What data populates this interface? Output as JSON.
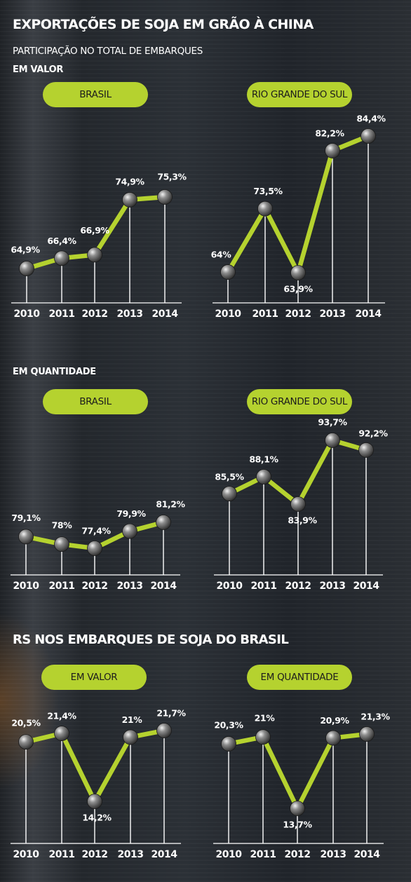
{
  "header": {
    "title": "EXPORTAÇÕES DE SOJA EM GRÃO À CHINA",
    "subtitle": "PARTICIPAÇÃO NO TOTAL DE EMBARQUES",
    "section_value": "EM VALOR",
    "section_quantity": "EM QUANTIDADE",
    "section_rs": "RS NOS EMBARQUES DE SOJA DO BRASIL"
  },
  "colors": {
    "line": "#b5d22f",
    "pill": "#b5d22f",
    "text": "#ffffff"
  },
  "chart_data": [
    {
      "type": "line",
      "title": "BRASIL",
      "group": "EM VALOR",
      "x": [
        "2010",
        "2011",
        "2012",
        "2013",
        "2014"
      ],
      "values": [
        64.9,
        66.4,
        66.9,
        74.9,
        75.3
      ],
      "labels": [
        "64,9%",
        "66,4%",
        "66,9%",
        "74,9%",
        "75,3%"
      ]
    },
    {
      "type": "line",
      "title": "RIO GRANDE DO SUL",
      "group": "EM VALOR",
      "x": [
        "2010",
        "2011",
        "2012",
        "2013",
        "2014"
      ],
      "values": [
        64,
        73.5,
        63.9,
        82.2,
        84.4
      ],
      "labels": [
        "64%",
        "73,5%",
        "63,9%",
        "82,2%",
        "84,4%"
      ]
    },
    {
      "type": "line",
      "title": "BRASIL",
      "group": "EM QUANTIDADE",
      "x": [
        "2010",
        "2011",
        "2012",
        "2013",
        "2014"
      ],
      "values": [
        79.1,
        78,
        77.4,
        79.9,
        81.2
      ],
      "labels": [
        "79,1%",
        "78%",
        "77,4%",
        "79,9%",
        "81,2%"
      ]
    },
    {
      "type": "line",
      "title": "RIO GRANDE DO SUL",
      "group": "EM QUANTIDADE",
      "x": [
        "2010",
        "2011",
        "2012",
        "2013",
        "2014"
      ],
      "values": [
        85.5,
        88.1,
        83.9,
        93.7,
        92.2
      ],
      "labels": [
        "85,5%",
        "88,1%",
        "83,9%",
        "93,7%",
        "92,2%"
      ]
    },
    {
      "type": "line",
      "title": "EM VALOR",
      "group": "RS NOS EMBARQUES DE SOJA DO BRASIL",
      "x": [
        "2010",
        "2011",
        "2012",
        "2013",
        "2014"
      ],
      "values": [
        20.5,
        21.4,
        14.2,
        21,
        21.7
      ],
      "labels": [
        "20,5%",
        "21,4%",
        "14,2%",
        "21%",
        "21,7%"
      ]
    },
    {
      "type": "line",
      "title": "EM QUANTIDADE",
      "group": "RS NOS EMBARQUES DE SOJA DO BRASIL",
      "x": [
        "2010",
        "2011",
        "2012",
        "2013",
        "2014"
      ],
      "values": [
        20.3,
        21,
        13.7,
        20.9,
        21.3
      ],
      "labels": [
        "20,3%",
        "21%",
        "13,7%",
        "20,9%",
        "21,3%"
      ]
    }
  ]
}
